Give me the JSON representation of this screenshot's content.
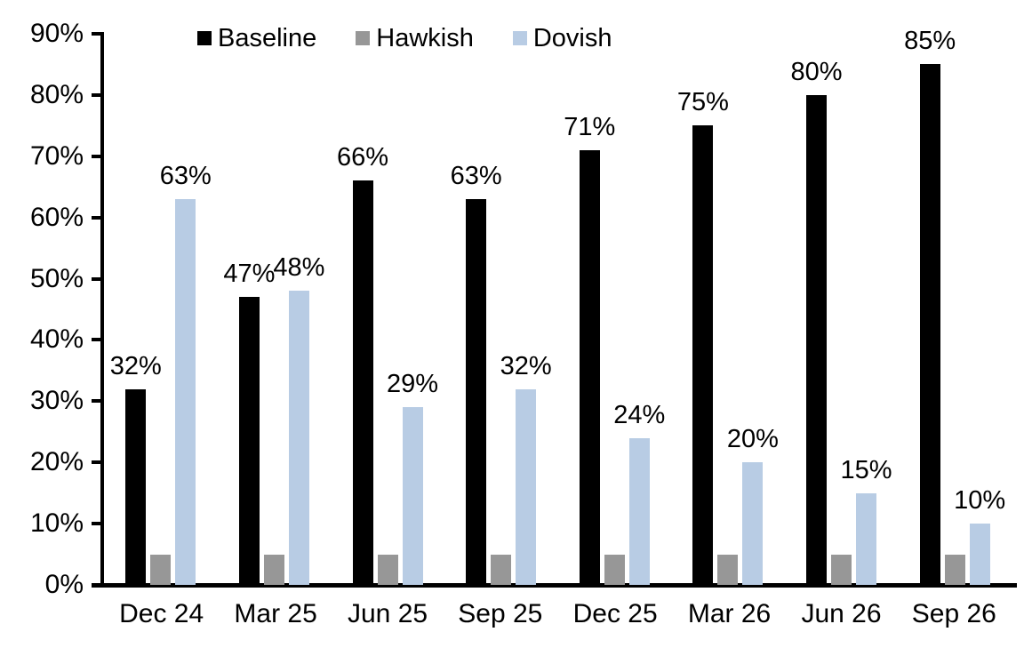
{
  "chart_data": {
    "type": "bar",
    "title": "",
    "categories": [
      "Dec 24",
      "Mar 25",
      "Jun 25",
      "Sep 25",
      "Dec 25",
      "Mar 26",
      "Jun 26",
      "Sep 26"
    ],
    "series": [
      {
        "name": "Baseline",
        "color": "#000000",
        "values": [
          32,
          47,
          66,
          63,
          71,
          75,
          80,
          85
        ],
        "show_labels": true
      },
      {
        "name": "Hawkish",
        "color": "#979797",
        "values": [
          5,
          5,
          5,
          5,
          5,
          5,
          5,
          5
        ],
        "show_labels": false
      },
      {
        "name": "Dovish",
        "color": "#b8cce4",
        "values": [
          63,
          48,
          29,
          32,
          24,
          20,
          15,
          10
        ],
        "show_labels": true
      }
    ],
    "label_suffix": "%",
    "y_axis": {
      "min": 0,
      "max": 90,
      "step": 10,
      "tick_labels": [
        "0%",
        "10%",
        "20%",
        "30%",
        "40%",
        "50%",
        "60%",
        "70%",
        "80%",
        "90%"
      ]
    },
    "legend": {
      "position": "top",
      "entries": [
        "Baseline",
        "Hawkish",
        "Dovish"
      ]
    },
    "grid": false,
    "background": "#ffffff",
    "axis_color": "#000000"
  }
}
